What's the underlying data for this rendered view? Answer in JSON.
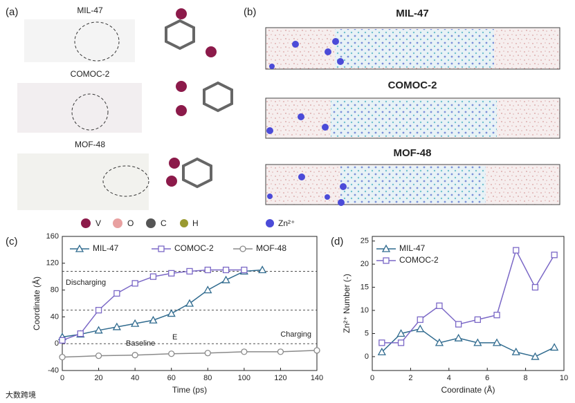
{
  "panels": {
    "a": "(a)",
    "b": "(b)",
    "c": "(c)",
    "d": "(d)"
  },
  "structures": [
    "MIL-47",
    "COMOC-2",
    "MOF-48"
  ],
  "simulations": [
    "MIL-47",
    "COMOC-2",
    "MOF-48"
  ],
  "atom_legend": [
    "V",
    "O",
    "C",
    "H",
    "Zn²⁺"
  ],
  "watermark": "大数跨境",
  "chart_data": [
    {
      "type": "line",
      "xlabel": "Time (ps)",
      "ylabel": "Coordinate (Å)",
      "xlim": [
        0,
        140
      ],
      "xticks": [
        0,
        20,
        40,
        60,
        80,
        100,
        120,
        140
      ],
      "ylim": [
        -40,
        160
      ],
      "yticks": [
        -40,
        0,
        40,
        80,
        120,
        160
      ],
      "reference_lines": [
        108,
        50,
        0
      ],
      "legend": "top",
      "annotations": [
        "Discharging",
        "Charging",
        "Baseline",
        "E"
      ],
      "series": [
        {
          "name": "MIL-47",
          "color": "#2f6a8e",
          "marker": "triangle",
          "x": [
            0,
            10,
            20,
            30,
            40,
            50,
            60,
            70,
            80,
            90,
            100,
            110
          ],
          "values": [
            10,
            14,
            20,
            25,
            30,
            35,
            45,
            60,
            80,
            95,
            108,
            110
          ]
        },
        {
          "name": "COMOC-2",
          "color": "#7a67c6",
          "marker": "square",
          "x": [
            0,
            10,
            20,
            30,
            40,
            50,
            60,
            70,
            80,
            90,
            100
          ],
          "values": [
            5,
            15,
            50,
            75,
            90,
            100,
            105,
            108,
            110,
            110,
            110
          ]
        },
        {
          "name": "MOF-48",
          "color": "#8a8a8a",
          "marker": "circle",
          "x": [
            0,
            20,
            40,
            60,
            80,
            100,
            120,
            140
          ],
          "values": [
            -20,
            -18,
            -17,
            -15,
            -14,
            -12,
            -12,
            -10
          ]
        }
      ]
    },
    {
      "type": "line",
      "xlabel": "Coordinate (Å)",
      "ylabel": "Zn²⁺ Number (-)",
      "xlim": [
        0,
        10
      ],
      "xticks": [
        0,
        2,
        4,
        6,
        8,
        10
      ],
      "ylim": [
        -3,
        26
      ],
      "yticks": [
        0,
        5,
        10,
        15,
        20,
        25
      ],
      "legend": "upper left",
      "series": [
        {
          "name": "MIL-47",
          "color": "#2f6a8e",
          "marker": "triangle",
          "x": [
            0.5,
            1.5,
            2.5,
            3.5,
            4.5,
            5.5,
            6.5,
            7.5,
            8.5,
            9.5
          ],
          "values": [
            1,
            5,
            6,
            3,
            4,
            3,
            3,
            1,
            0,
            2
          ]
        },
        {
          "name": "COMOC-2",
          "color": "#7a67c6",
          "marker": "square",
          "x": [
            0.5,
            1.5,
            2.5,
            3.5,
            4.5,
            5.5,
            6.5,
            7.5,
            8.5,
            9.5
          ],
          "values": [
            3,
            3,
            8,
            11,
            7,
            8,
            9,
            23,
            15,
            22
          ]
        }
      ]
    }
  ]
}
